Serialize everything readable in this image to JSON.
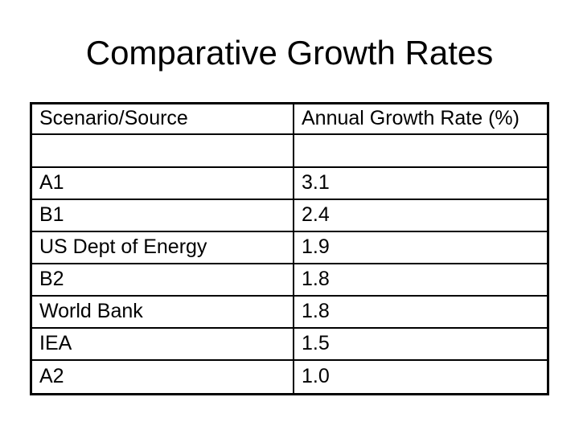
{
  "slide": {
    "title": "Comparative Growth Rates"
  },
  "table": {
    "header": [
      "Scenario/Source",
      "Annual Growth Rate (%)"
    ],
    "rows": [
      {
        "scenario": "A1",
        "rate": "3.1"
      },
      {
        "scenario": "B1",
        "rate": "2.4"
      },
      {
        "scenario": "US Dept of Energy",
        "rate": "1.9"
      },
      {
        "scenario": "B2",
        "rate": "1.8"
      },
      {
        "scenario": "World Bank",
        "rate": "1.8"
      },
      {
        "scenario": "IEA",
        "rate": "1.5"
      },
      {
        "scenario": "A2",
        "rate": "1.0"
      }
    ]
  },
  "colors": {
    "background": "#ffffff",
    "text": "#000000",
    "border": "#000000"
  }
}
